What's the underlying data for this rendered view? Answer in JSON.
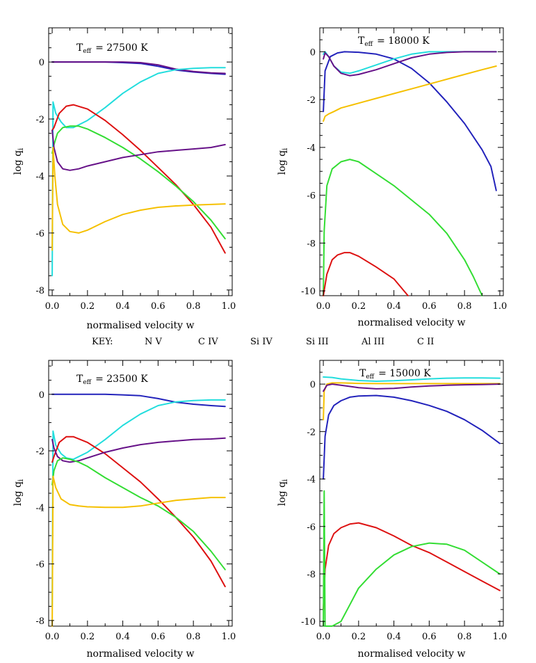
{
  "key": {
    "label": "KEY:",
    "entries": [
      {
        "name": "N V",
        "color": "#33dd33"
      },
      {
        "name": "C IV",
        "color": "#dd1111"
      },
      {
        "name": "Si IV",
        "color": "#2222bb"
      },
      {
        "name": "Si III",
        "color": "#22dddd"
      },
      {
        "name": "Al III",
        "color": "#661188"
      },
      {
        "name": "C II",
        "color": "#f5c000"
      }
    ]
  },
  "chart_data": [
    {
      "type": "line",
      "title_prefix": "T",
      "title_sub": "eff",
      "title_value": "= 27500  K",
      "xlabel": "normalised velocity w",
      "ylabel": "log q",
      "ylabel_sub": "i",
      "xlim": [
        -0.02,
        1.02
      ],
      "ylim": [
        -8.2,
        1.2
      ],
      "xticks": [
        0.0,
        0.2,
        0.4,
        0.6,
        0.8,
        1.0
      ],
      "xtick_labels": [
        "0.0",
        "0.2",
        "0.4",
        "0.6",
        "0.8",
        "1.0"
      ],
      "yticks": [
        0,
        -2,
        -4,
        -6,
        -8
      ],
      "ytick_labels": [
        "0",
        "-2",
        "-4",
        "-6",
        "-8"
      ],
      "series": [
        {
          "name": "Si IV",
          "x": [
            0,
            0.02,
            0.1,
            0.2,
            0.3,
            0.4,
            0.5,
            0.6,
            0.7,
            0.8,
            0.9,
            0.98
          ],
          "y": [
            0,
            0,
            0,
            0,
            0,
            -0.02,
            -0.05,
            -0.15,
            -0.28,
            -0.35,
            -0.4,
            -0.43
          ]
        },
        {
          "name": "Al III",
          "x": [
            0,
            0.1,
            0.2,
            0.3,
            0.4,
            0.5,
            0.6,
            0.7,
            0.8,
            0.9,
            0.98
          ],
          "y": [
            0,
            0,
            0,
            0,
            0,
            -0.02,
            -0.1,
            -0.25,
            -0.33,
            -0.38,
            -0.4
          ]
        },
        {
          "name": "Si III",
          "x": [
            0,
            0.005,
            0.02,
            0.05,
            0.08,
            0.12,
            0.2,
            0.3,
            0.4,
            0.5,
            0.6,
            0.7,
            0.8,
            0.9,
            0.98
          ],
          "y": [
            -7.5,
            -1.4,
            -1.8,
            -2.1,
            -2.3,
            -2.3,
            -2.05,
            -1.6,
            -1.1,
            -0.7,
            -0.4,
            -0.27,
            -0.22,
            -0.2,
            -0.2
          ]
        },
        {
          "name": "C IV",
          "x": [
            0,
            0.01,
            0.04,
            0.08,
            0.12,
            0.2,
            0.3,
            0.4,
            0.5,
            0.6,
            0.7,
            0.8,
            0.9,
            0.98
          ],
          "y": [
            -2.4,
            -2.3,
            -1.8,
            -1.55,
            -1.5,
            -1.65,
            -2.05,
            -2.55,
            -3.1,
            -3.7,
            -4.3,
            -5.0,
            -5.8,
            -6.7
          ]
        },
        {
          "name": "N V",
          "x": [
            0,
            0.01,
            0.03,
            0.06,
            0.1,
            0.15,
            0.2,
            0.3,
            0.4,
            0.5,
            0.6,
            0.7,
            0.8,
            0.9,
            0.98
          ],
          "y": [
            -3.2,
            -2.9,
            -2.5,
            -2.3,
            -2.25,
            -2.25,
            -2.35,
            -2.65,
            -3.0,
            -3.4,
            -3.85,
            -4.35,
            -4.9,
            -5.55,
            -6.2
          ]
        },
        {
          "name": "Al III",
          "x": [
            0,
            0.01,
            0.03,
            0.06,
            0.1,
            0.15,
            0.2,
            0.3,
            0.4,
            0.5,
            0.6,
            0.7,
            0.8,
            0.9,
            0.98
          ],
          "y": [
            -2.4,
            -3.0,
            -3.5,
            -3.75,
            -3.8,
            -3.75,
            -3.65,
            -3.5,
            -3.35,
            -3.25,
            -3.15,
            -3.1,
            -3.05,
            -3.0,
            -2.9
          ]
        },
        {
          "name": "C II",
          "x": [
            0,
            0.005,
            0.015,
            0.03,
            0.06,
            0.1,
            0.15,
            0.2,
            0.3,
            0.4,
            0.5,
            0.6,
            0.7,
            0.8,
            0.9,
            0.98
          ],
          "y": [
            -6.6,
            -3.0,
            -4.0,
            -5.0,
            -5.7,
            -5.95,
            -6.0,
            -5.9,
            -5.6,
            -5.35,
            -5.2,
            -5.1,
            -5.05,
            -5.02,
            -5.0,
            -4.98
          ]
        }
      ]
    },
    {
      "type": "line",
      "title_prefix": "T",
      "title_sub": "eff",
      "title_value": "= 18000  K",
      "xlabel": "normalised velocity w",
      "ylabel": "log q",
      "ylabel_sub": "i",
      "xlim": [
        -0.02,
        1.02
      ],
      "ylim": [
        -10.2,
        1.0
      ],
      "xticks": [
        0.0,
        0.2,
        0.4,
        0.6,
        0.8,
        1.0
      ],
      "xtick_labels": [
        "0.0",
        "0.2",
        "0.4",
        "0.6",
        "0.8",
        "1.0"
      ],
      "yticks": [
        0,
        -2,
        -4,
        -6,
        -8,
        -10
      ],
      "ytick_labels": [
        "0",
        "-2",
        "-4",
        "-6",
        "-8",
        "-10"
      ],
      "series": [
        {
          "name": "Si IV",
          "x": [
            0,
            0.01,
            0.04,
            0.08,
            0.12,
            0.2,
            0.3,
            0.4,
            0.5,
            0.6,
            0.7,
            0.8,
            0.9,
            0.95,
            0.98
          ],
          "y": [
            -2.5,
            -0.8,
            -0.2,
            -0.05,
            0,
            -0.02,
            -0.1,
            -0.3,
            -0.7,
            -1.3,
            -2.1,
            -3.0,
            -4.1,
            -4.8,
            -5.8
          ]
        },
        {
          "name": "Si III",
          "x": [
            0,
            0.01,
            0.03,
            0.06,
            0.1,
            0.15,
            0.2,
            0.3,
            0.4,
            0.5,
            0.6,
            0.7,
            0.8,
            0.9,
            0.98
          ],
          "y": [
            -0.1,
            0,
            -0.2,
            -0.6,
            -0.85,
            -0.9,
            -0.8,
            -0.55,
            -0.3,
            -0.1,
            0,
            0,
            0,
            0,
            0
          ]
        },
        {
          "name": "Al III",
          "x": [
            0,
            0.01,
            0.03,
            0.06,
            0.1,
            0.15,
            0.2,
            0.3,
            0.4,
            0.5,
            0.6,
            0.7,
            0.8,
            0.9,
            0.98
          ],
          "y": [
            -0.3,
            -0.05,
            -0.2,
            -0.6,
            -0.9,
            -1.0,
            -0.95,
            -0.75,
            -0.5,
            -0.25,
            -0.1,
            -0.03,
            0,
            0,
            0
          ]
        },
        {
          "name": "C II",
          "x": [
            0,
            0.01,
            0.03,
            0.06,
            0.1,
            0.2,
            0.3,
            0.4,
            0.5,
            0.6,
            0.7,
            0.8,
            0.9,
            0.98
          ],
          "y": [
            -2.9,
            -2.7,
            -2.6,
            -2.5,
            -2.35,
            -2.15,
            -1.95,
            -1.75,
            -1.55,
            -1.35,
            -1.15,
            -0.95,
            -0.75,
            -0.6
          ]
        },
        {
          "name": "N V",
          "x": [
            0,
            0.005,
            0.02,
            0.05,
            0.1,
            0.15,
            0.2,
            0.3,
            0.4,
            0.5,
            0.6,
            0.7,
            0.8,
            0.85,
            0.9
          ],
          "y": [
            -10.2,
            -7.5,
            -5.6,
            -4.9,
            -4.6,
            -4.5,
            -4.6,
            -5.1,
            -5.6,
            -6.2,
            -6.8,
            -7.6,
            -8.7,
            -9.4,
            -10.2
          ]
        },
        {
          "name": "C IV",
          "x": [
            0,
            0.02,
            0.05,
            0.08,
            0.12,
            0.15,
            0.2,
            0.3,
            0.4,
            0.48
          ],
          "y": [
            -10.2,
            -9.3,
            -8.7,
            -8.5,
            -8.4,
            -8.4,
            -8.55,
            -9.0,
            -9.5,
            -10.2
          ]
        }
      ]
    },
    {
      "type": "line",
      "title_prefix": "T",
      "title_sub": "eff",
      "title_value": "= 23500  K",
      "xlabel": "normalised velocity w",
      "ylabel": "log q",
      "ylabel_sub": "i",
      "xlim": [
        -0.02,
        1.02
      ],
      "ylim": [
        -8.2,
        1.2
      ],
      "xticks": [
        0.0,
        0.2,
        0.4,
        0.6,
        0.8,
        1.0
      ],
      "xtick_labels": [
        "0.0",
        "0.2",
        "0.4",
        "0.6",
        "0.8",
        "1.0"
      ],
      "yticks": [
        0,
        -2,
        -4,
        -6,
        -8
      ],
      "ytick_labels": [
        "0",
        "-2",
        "-4",
        "-6",
        "-8"
      ],
      "series": [
        {
          "name": "Si IV",
          "x": [
            0,
            0.02,
            0.1,
            0.2,
            0.3,
            0.4,
            0.5,
            0.6,
            0.7,
            0.8,
            0.9,
            0.98
          ],
          "y": [
            0,
            0,
            0,
            0,
            0,
            -0.02,
            -0.05,
            -0.15,
            -0.28,
            -0.35,
            -0.4,
            -0.43
          ]
        },
        {
          "name": "Si III",
          "x": [
            0,
            0.005,
            0.02,
            0.05,
            0.08,
            0.12,
            0.2,
            0.3,
            0.4,
            0.5,
            0.6,
            0.7,
            0.8,
            0.9,
            0.98
          ],
          "y": [
            -7.5,
            -1.3,
            -1.8,
            -2.1,
            -2.25,
            -2.3,
            -2.05,
            -1.6,
            -1.1,
            -0.7,
            -0.4,
            -0.27,
            -0.22,
            -0.2,
            -0.2
          ]
        },
        {
          "name": "C IV",
          "x": [
            0,
            0.01,
            0.04,
            0.08,
            0.12,
            0.2,
            0.3,
            0.4,
            0.5,
            0.6,
            0.7,
            0.8,
            0.9,
            0.98
          ],
          "y": [
            -2.4,
            -2.2,
            -1.7,
            -1.5,
            -1.5,
            -1.7,
            -2.1,
            -2.6,
            -3.1,
            -3.7,
            -4.35,
            -5.05,
            -5.9,
            -6.8
          ]
        },
        {
          "name": "Al III",
          "x": [
            0,
            0.01,
            0.03,
            0.06,
            0.1,
            0.15,
            0.2,
            0.3,
            0.4,
            0.5,
            0.6,
            0.7,
            0.8,
            0.9,
            0.98
          ],
          "y": [
            -1.6,
            -1.9,
            -2.2,
            -2.35,
            -2.4,
            -2.35,
            -2.25,
            -2.05,
            -1.9,
            -1.78,
            -1.7,
            -1.65,
            -1.6,
            -1.58,
            -1.55
          ]
        },
        {
          "name": "N V",
          "x": [
            0,
            0.01,
            0.03,
            0.06,
            0.1,
            0.15,
            0.2,
            0.3,
            0.4,
            0.5,
            0.6,
            0.7,
            0.8,
            0.9,
            0.98
          ],
          "y": [
            -3.2,
            -2.7,
            -2.35,
            -2.25,
            -2.3,
            -2.4,
            -2.55,
            -2.95,
            -3.3,
            -3.65,
            -3.95,
            -4.35,
            -4.85,
            -5.55,
            -6.2
          ]
        },
        {
          "name": "C II",
          "x": [
            0,
            0.005,
            0.02,
            0.05,
            0.1,
            0.15,
            0.2,
            0.3,
            0.4,
            0.5,
            0.6,
            0.7,
            0.8,
            0.9,
            0.98
          ],
          "y": [
            -8.2,
            -2.9,
            -3.3,
            -3.7,
            -3.9,
            -3.95,
            -3.98,
            -4.0,
            -4.0,
            -3.95,
            -3.85,
            -3.75,
            -3.7,
            -3.65,
            -3.65
          ]
        }
      ]
    },
    {
      "type": "line",
      "title_prefix": "T",
      "title_sub": "eff",
      "title_value": "= 15000  K",
      "xlabel": "normalised velocity w",
      "ylabel": "log q",
      "ylabel_sub": "i",
      "xlim": [
        -0.02,
        1.02
      ],
      "ylim": [
        -10.2,
        1.0
      ],
      "xticks": [
        0.0,
        0.2,
        0.4,
        0.6,
        0.8,
        1.0
      ],
      "xtick_labels": [
        "0.0",
        "0.2",
        "0.4",
        "0.6",
        "0.8",
        "1.0"
      ],
      "yticks": [
        0,
        -2,
        -4,
        -6,
        -8,
        -10
      ],
      "ytick_labels": [
        "0",
        "-2",
        "-4",
        "-6",
        "-8",
        "-10"
      ],
      "series": [
        {
          "name": "Si III",
          "x": [
            0,
            0.05,
            0.1,
            0.2,
            0.3,
            0.4,
            0.5,
            0.6,
            0.7,
            0.8,
            0.9,
            1.0
          ],
          "y": [
            0.3,
            0.28,
            0.22,
            0.15,
            0.12,
            0.14,
            0.18,
            0.22,
            0.25,
            0.26,
            0.26,
            0.25
          ]
        },
        {
          "name": "C II",
          "x": [
            0,
            0.005,
            0.02,
            0.05,
            0.1,
            0.2,
            0.3,
            0.4,
            0.5,
            0.6,
            0.7,
            0.8,
            0.9,
            1.0
          ],
          "y": [
            -1.5,
            -0.3,
            0,
            0.05,
            0.05,
            0.03,
            0.02,
            0.02,
            0.02,
            0.02,
            0.02,
            0.02,
            0.02,
            0.02
          ]
        },
        {
          "name": "Al III",
          "x": [
            0,
            0.02,
            0.05,
            0.1,
            0.2,
            0.3,
            0.4,
            0.5,
            0.6,
            0.7,
            0.8,
            0.9,
            1.0
          ],
          "y": [
            -0.3,
            -0.05,
            0,
            -0.05,
            -0.15,
            -0.2,
            -0.18,
            -0.12,
            -0.08,
            -0.05,
            -0.03,
            -0.02,
            0
          ]
        },
        {
          "name": "Si IV",
          "x": [
            0,
            0.01,
            0.03,
            0.06,
            0.1,
            0.15,
            0.2,
            0.3,
            0.4,
            0.5,
            0.6,
            0.7,
            0.8,
            0.9,
            1.0
          ],
          "y": [
            -4.0,
            -2.2,
            -1.3,
            -0.9,
            -0.7,
            -0.55,
            -0.5,
            -0.48,
            -0.55,
            -0.7,
            -0.9,
            -1.15,
            -1.5,
            -1.95,
            -2.5
          ]
        },
        {
          "name": "C IV",
          "x": [
            0,
            0.01,
            0.03,
            0.06,
            0.1,
            0.15,
            0.2,
            0.3,
            0.4,
            0.5,
            0.6,
            0.7,
            0.8,
            0.9,
            1.0
          ],
          "y": [
            -9.5,
            -7.8,
            -6.8,
            -6.3,
            -6.05,
            -5.9,
            -5.85,
            -6.05,
            -6.4,
            -6.8,
            -7.1,
            -7.5,
            -7.9,
            -8.3,
            -8.7
          ]
        },
        {
          "name": "N V",
          "x": [
            0,
            0.005,
            0.01,
            0.02,
            0.05,
            0.1,
            0.15,
            0.2,
            0.3,
            0.4,
            0.5,
            0.6,
            0.7,
            0.8,
            0.9,
            1.0
          ],
          "y": [
            -10.2,
            -4.5,
            -10.2,
            -10.2,
            -10.2,
            -10.0,
            -9.3,
            -8.6,
            -7.8,
            -7.2,
            -6.85,
            -6.7,
            -6.75,
            -7.0,
            -7.5,
            -8.0
          ]
        }
      ]
    }
  ]
}
